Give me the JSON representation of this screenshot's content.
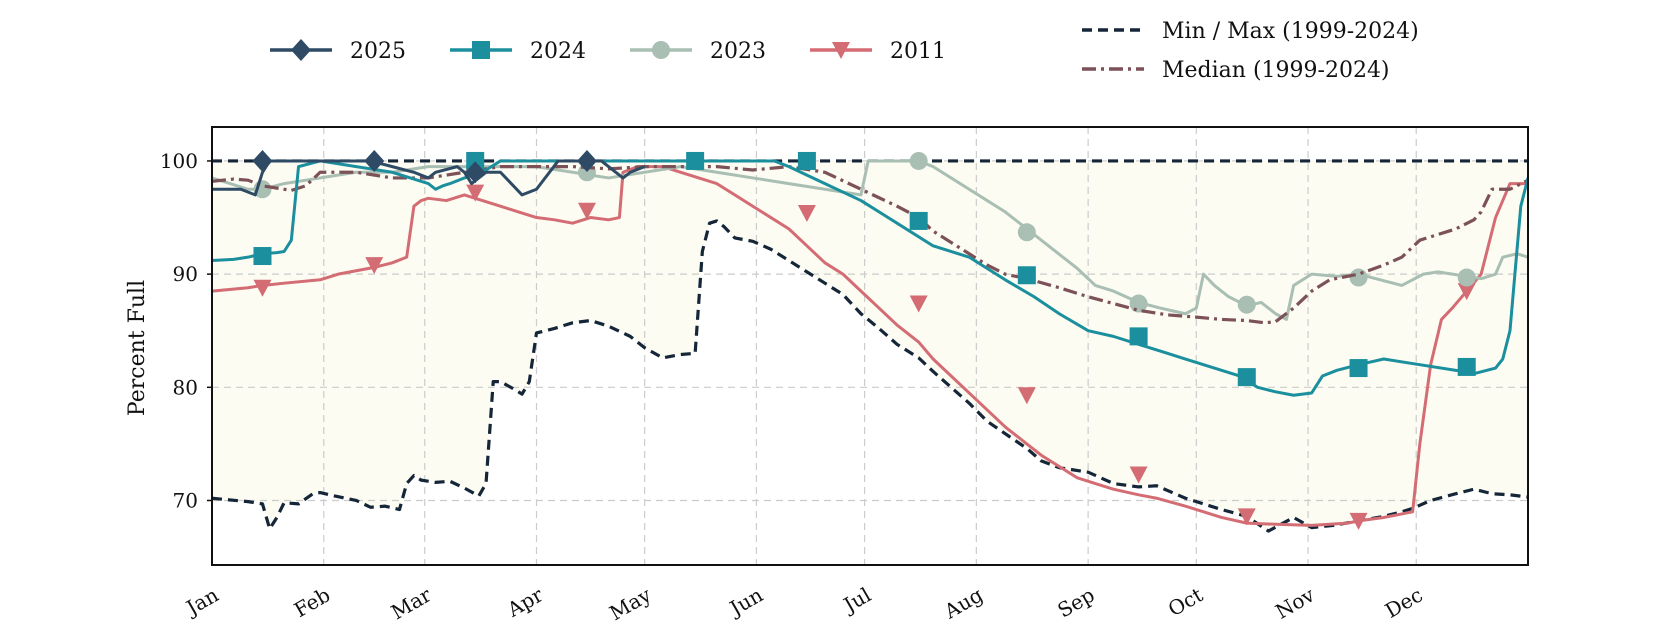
{
  "chart_data": {
    "type": "line",
    "title": "",
    "xlabel": "",
    "ylabel": "Percent Full",
    "ylim": [
      64.3,
      103
    ],
    "xlim": [
      0,
      365
    ],
    "yticks": [
      70,
      80,
      90,
      100
    ],
    "xtick_labels": [
      "Jan",
      "Feb",
      "Mar",
      "Apr",
      "May",
      "Jun",
      "Jul",
      "Aug",
      "Sep",
      "Oct",
      "Nov",
      "Dec"
    ],
    "xtick_days": [
      0,
      31,
      59,
      90,
      120,
      151,
      181,
      212,
      243,
      273,
      304,
      334
    ],
    "grid": true,
    "legend_placement": "top, above plot",
    "band": {
      "fill": "#fcfcf2",
      "min_series": "Min",
      "max_series": "Max"
    },
    "series": [
      {
        "name": "2025",
        "color": "#2e4a64",
        "style": "solid",
        "marker": "diamond",
        "x": [
          0,
          8,
          12,
          14,
          16,
          20,
          24,
          30,
          36,
          44,
          50,
          56,
          60,
          62,
          68,
          70,
          72,
          74,
          76,
          80,
          86,
          90,
          96,
          100,
          104,
          108,
          112,
          114,
          116,
          120
        ],
        "y": [
          97.5,
          97.5,
          97.0,
          99.0,
          100.0,
          100.0,
          100.0,
          100.0,
          100.0,
          100.0,
          99.5,
          99.0,
          98.5,
          99.0,
          99.5,
          99.0,
          98.0,
          98.5,
          99.0,
          99.0,
          97.0,
          97.5,
          100.0,
          100.0,
          100.0,
          100.0,
          99.0,
          98.5,
          99.0,
          99.5
        ],
        "marker_x": [
          14,
          45,
          73,
          104
        ],
        "marker_y": [
          100.0,
          100.0,
          99.0,
          100.0
        ]
      },
      {
        "name": "2024",
        "color": "#1b8f9e",
        "style": "solid",
        "marker": "square",
        "x": [
          0,
          6,
          10,
          14,
          18,
          20,
          22,
          24,
          30,
          40,
          50,
          55,
          60,
          62,
          64,
          66,
          70,
          75,
          80,
          90,
          100,
          110,
          120,
          130,
          140,
          150,
          156,
          160,
          170,
          180,
          190,
          200,
          210,
          220,
          228,
          235,
          243,
          250,
          255,
          260,
          265,
          270,
          275,
          280,
          285,
          290,
          295,
          300,
          305,
          308,
          312,
          318,
          325,
          335,
          345,
          350,
          356,
          358,
          360,
          363,
          365
        ],
        "y": [
          91.2,
          91.3,
          91.5,
          91.8,
          91.9,
          92.0,
          93.0,
          99.5,
          100.0,
          99.5,
          99.0,
          98.5,
          98.0,
          97.5,
          97.8,
          98.0,
          98.5,
          99.0,
          100.0,
          100.0,
          100.0,
          100.0,
          100.0,
          100.0,
          100.0,
          100.0,
          100.0,
          99.5,
          98.0,
          96.5,
          94.5,
          92.5,
          91.5,
          89.5,
          88.0,
          86.5,
          85.0,
          84.5,
          84.0,
          83.5,
          83.0,
          82.5,
          82.0,
          81.5,
          81.0,
          80.0,
          79.6,
          79.3,
          79.5,
          81.0,
          81.5,
          82.0,
          82.5,
          82.0,
          81.5,
          81.2,
          81.7,
          82.5,
          85.0,
          96.0,
          98.5
        ],
        "marker_x": [
          14,
          73,
          134,
          165,
          196,
          226,
          257,
          287,
          318,
          348
        ],
        "marker_y": [
          91.6,
          100.0,
          100.0,
          100.0,
          94.7,
          89.9,
          84.5,
          80.9,
          81.7,
          81.8
        ]
      },
      {
        "name": "2023",
        "color": "#a9bfb3",
        "style": "solid",
        "marker": "circle",
        "x": [
          0,
          5,
          10,
          14,
          20,
          30,
          40,
          50,
          60,
          70,
          80,
          90,
          100,
          110,
          120,
          130,
          140,
          150,
          160,
          170,
          180,
          182,
          184,
          190,
          196,
          200,
          205,
          210,
          215,
          220,
          226,
          232,
          240,
          245,
          250,
          257,
          263,
          270,
          273,
          275,
          278,
          282,
          287,
          291,
          295,
          298,
          300,
          305,
          312,
          318,
          324,
          330,
          336,
          340,
          344,
          348,
          352,
          356,
          358,
          362,
          365
        ],
        "y": [
          98.5,
          98.0,
          97.5,
          97.5,
          98.0,
          98.5,
          99.0,
          99.0,
          99.5,
          99.5,
          99.5,
          99.5,
          99.0,
          98.5,
          99.0,
          99.5,
          99.0,
          98.5,
          98.0,
          97.5,
          97.0,
          100.0,
          100.0,
          100.0,
          100.0,
          99.5,
          98.5,
          97.5,
          96.5,
          95.5,
          94.0,
          92.5,
          90.5,
          89.0,
          88.5,
          87.5,
          87.0,
          86.5,
          87.0,
          90.0,
          89.0,
          88.0,
          87.2,
          87.5,
          86.5,
          86.0,
          89.0,
          90.0,
          89.8,
          90.0,
          89.5,
          89.0,
          90.0,
          90.2,
          90.0,
          89.8,
          89.6,
          90.0,
          91.5,
          91.8,
          91.5
        ],
        "marker_x": [
          14,
          104,
          196,
          226,
          257,
          287,
          318,
          348
        ],
        "marker_y": [
          97.5,
          99.0,
          100.0,
          93.7,
          87.4,
          87.3,
          89.7,
          89.7
        ]
      },
      {
        "name": "2011",
        "color": "#d46c74",
        "style": "solid",
        "marker": "triangle-down",
        "x": [
          0,
          10,
          14,
          20,
          30,
          35,
          40,
          45,
          50,
          54,
          56,
          58,
          60,
          65,
          70,
          75,
          80,
          85,
          90,
          95,
          100,
          105,
          110,
          113,
          114,
          118,
          125,
          130,
          135,
          140,
          145,
          150,
          155,
          160,
          165,
          170,
          175,
          180,
          185,
          190,
          196,
          200,
          205,
          210,
          215,
          220,
          226,
          230,
          235,
          240,
          245,
          250,
          257,
          262,
          270,
          280,
          287,
          295,
          305,
          315,
          318,
          325,
          333,
          335,
          338,
          341,
          344,
          348,
          352,
          356,
          360,
          365
        ],
        "y": [
          88.5,
          88.8,
          89.0,
          89.2,
          89.5,
          90.0,
          90.3,
          90.6,
          91.0,
          91.5,
          96.0,
          96.5,
          96.7,
          96.5,
          97.0,
          96.5,
          96.0,
          95.5,
          95.0,
          94.8,
          94.5,
          95.0,
          94.8,
          95.0,
          99.0,
          99.5,
          99.5,
          99.0,
          98.5,
          98.0,
          97.0,
          96.0,
          95.0,
          94.0,
          92.5,
          91.0,
          90.0,
          88.5,
          87.0,
          85.5,
          84.0,
          82.5,
          81.0,
          79.5,
          78.0,
          76.5,
          75.0,
          74.0,
          73.0,
          72.0,
          71.5,
          71.0,
          70.5,
          70.2,
          69.5,
          68.5,
          68.0,
          67.9,
          67.8,
          68.0,
          68.2,
          68.5,
          69.0,
          75.0,
          82.0,
          86.0,
          87.0,
          88.5,
          90.0,
          95.0,
          98.0,
          98.0
        ],
        "marker_x": [
          14,
          45,
          73,
          104,
          165,
          196,
          226,
          257,
          287,
          318,
          348
        ],
        "marker_y": [
          88.8,
          90.8,
          97.2,
          95.6,
          95.4,
          87.4,
          79.3,
          72.3,
          68.6,
          68.2,
          88.5
        ]
      },
      {
        "name": "Min / Max (1999-2024)",
        "color": "#152638",
        "style": "dashed",
        "marker": "none",
        "x": [
          0,
          365
        ],
        "y": [
          100.0,
          100.0
        ]
      },
      {
        "name": "Min",
        "color": "#152638",
        "style": "dashed",
        "marker": "none",
        "legend": false,
        "x": [
          0,
          10,
          14,
          16,
          18,
          20,
          24,
          28,
          30,
          34,
          40,
          44,
          48,
          52,
          54,
          56,
          58,
          62,
          66,
          70,
          74,
          76,
          78,
          80,
          84,
          86,
          88,
          90,
          95,
          100,
          105,
          110,
          116,
          120,
          125,
          130,
          134,
          136,
          138,
          140,
          142,
          145,
          150,
          155,
          160,
          165,
          170,
          175,
          180,
          185,
          190,
          196,
          200,
          205,
          210,
          215,
          220,
          226,
          230,
          235,
          243,
          250,
          257,
          262,
          270,
          280,
          287,
          293,
          300,
          305,
          311,
          318,
          325,
          330,
          333,
          338,
          345,
          350,
          355,
          360,
          365
        ],
        "y": [
          70.2,
          69.9,
          69.7,
          67.5,
          68.5,
          69.8,
          69.7,
          70.6,
          70.7,
          70.4,
          70.0,
          69.4,
          69.5,
          69.2,
          71.5,
          72.2,
          71.8,
          71.6,
          71.7,
          71.1,
          70.4,
          71.5,
          80.5,
          80.5,
          79.8,
          79.4,
          80.5,
          84.8,
          85.2,
          85.7,
          85.9,
          85.4,
          84.5,
          83.5,
          82.6,
          82.9,
          83.0,
          92.0,
          94.5,
          94.7,
          94.2,
          93.2,
          92.9,
          92.2,
          91.2,
          90.2,
          89.2,
          88.2,
          86.5,
          85.2,
          83.8,
          82.6,
          81.4,
          80.0,
          78.6,
          77.0,
          75.9,
          74.6,
          73.5,
          72.9,
          72.5,
          71.5,
          71.2,
          71.3,
          70.2,
          69.2,
          68.6,
          67.3,
          68.5,
          67.6,
          67.8,
          68.2,
          68.6,
          69.0,
          69.3,
          70.0,
          70.6,
          71.0,
          70.6,
          70.5,
          70.3
        ]
      },
      {
        "name": "Median (1999-2024)",
        "color": "#7c5158",
        "style": "dashdot",
        "marker": "none",
        "x": [
          0,
          6,
          10,
          14,
          18,
          22,
          26,
          30,
          40,
          50,
          60,
          70,
          80,
          90,
          100,
          110,
          120,
          130,
          140,
          150,
          160,
          170,
          180,
          190,
          196,
          200,
          205,
          210,
          215,
          220,
          226,
          235,
          243,
          250,
          257,
          265,
          273,
          280,
          287,
          292,
          295,
          300,
          305,
          310,
          318,
          325,
          330,
          335,
          340,
          345,
          350,
          352,
          355,
          360,
          365
        ],
        "y": [
          98.2,
          98.4,
          98.3,
          97.8,
          97.6,
          97.4,
          97.8,
          99.0,
          99.0,
          98.5,
          98.5,
          99.0,
          99.5,
          99.5,
          99.5,
          99.3,
          99.5,
          99.5,
          99.5,
          99.2,
          99.5,
          99.0,
          97.5,
          96.0,
          95.0,
          93.8,
          92.8,
          91.8,
          90.8,
          90.0,
          89.6,
          88.8,
          88.0,
          87.4,
          86.8,
          86.4,
          86.2,
          86.0,
          85.9,
          85.7,
          85.8,
          87.0,
          88.5,
          89.5,
          90.0,
          90.8,
          91.5,
          93.0,
          93.5,
          94.0,
          94.8,
          95.5,
          97.5,
          97.5,
          98.3
        ]
      }
    ]
  }
}
